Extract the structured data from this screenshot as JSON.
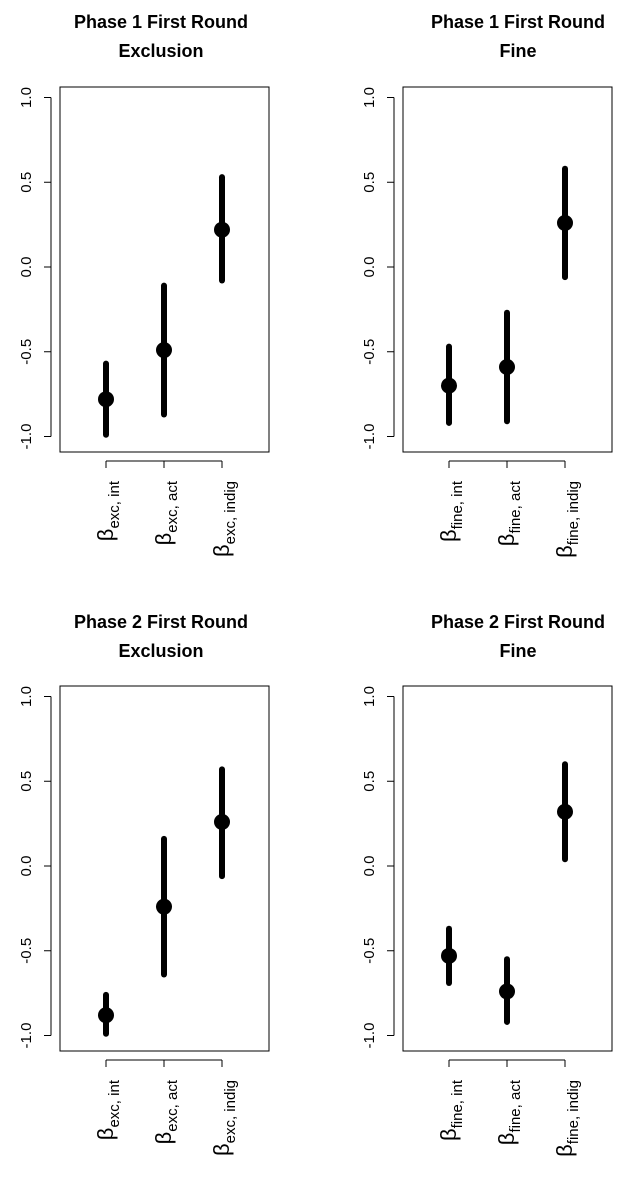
{
  "charts": [
    {
      "type": "scatter",
      "title": [
        "Phase 1 First Round",
        "Exclusion"
      ],
      "ylim": [
        -1.1,
        1.1
      ],
      "yticks": [
        "-1.0",
        "-0.5",
        "0.0",
        "0.5",
        "1.0"
      ],
      "points": [
        {
          "greek": "β",
          "sub": "exc, int",
          "estimate": -0.78,
          "lower": -0.99,
          "upper": -0.57
        },
        {
          "greek": "β",
          "sub": "exc, act",
          "estimate": -0.49,
          "lower": -0.87,
          "upper": -0.11
        },
        {
          "greek": "β",
          "sub": "exc, indig",
          "estimate": 0.22,
          "lower": -0.08,
          "upper": 0.53
        }
      ]
    },
    {
      "type": "scatter",
      "title": [
        "Phase 1 First Round",
        "Fine"
      ],
      "ylim": [
        -1.1,
        1.1
      ],
      "yticks": [
        "-1.0",
        "-0.5",
        "0.0",
        "0.5",
        "1.0"
      ],
      "points": [
        {
          "greek": "β",
          "sub": "fine, int",
          "estimate": -0.7,
          "lower": -0.92,
          "upper": -0.47
        },
        {
          "greek": "β",
          "sub": "fine, act",
          "estimate": -0.59,
          "lower": -0.91,
          "upper": -0.27
        },
        {
          "greek": "β",
          "sub": "fine, indig",
          "estimate": 0.26,
          "lower": -0.06,
          "upper": 0.58
        }
      ]
    },
    {
      "type": "scatter",
      "title": [
        "Phase 2 First Round",
        "Exclusion"
      ],
      "ylim": [
        -1.1,
        1.1
      ],
      "yticks": [
        "-1.0",
        "-0.5",
        "0.0",
        "0.5",
        "1.0"
      ],
      "points": [
        {
          "greek": "β",
          "sub": "exc, int",
          "estimate": -0.88,
          "lower": -0.99,
          "upper": -0.76
        },
        {
          "greek": "β",
          "sub": "exc, act",
          "estimate": -0.24,
          "lower": -0.64,
          "upper": 0.16
        },
        {
          "greek": "β",
          "sub": "exc, indig",
          "estimate": 0.26,
          "lower": -0.06,
          "upper": 0.57
        }
      ]
    },
    {
      "type": "scatter",
      "title": [
        "Phase 2 First Round",
        "Fine"
      ],
      "ylim": [
        -1.1,
        1.1
      ],
      "yticks": [
        "-1.0",
        "-0.5",
        "0.0",
        "0.5",
        "1.0"
      ],
      "points": [
        {
          "greek": "β",
          "sub": "fine, int",
          "estimate": -0.53,
          "lower": -0.69,
          "upper": -0.37
        },
        {
          "greek": "β",
          "sub": "fine, act",
          "estimate": -0.74,
          "lower": -0.92,
          "upper": -0.55
        },
        {
          "greek": "β",
          "sub": "fine, indig",
          "estimate": 0.32,
          "lower": 0.04,
          "upper": 0.6
        }
      ]
    }
  ]
}
